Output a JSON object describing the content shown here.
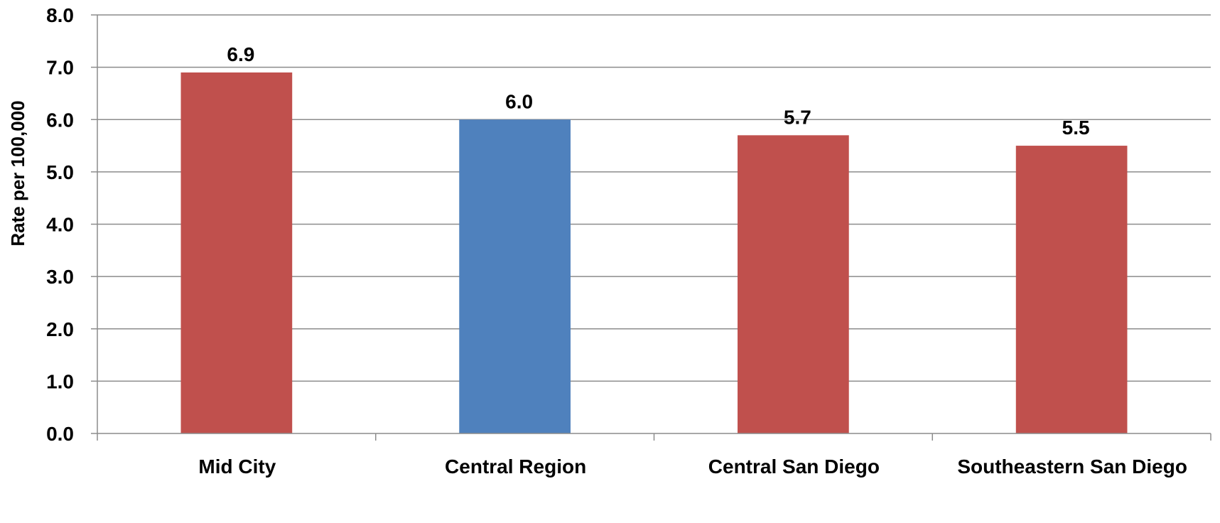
{
  "chart_data": {
    "type": "bar",
    "categories": [
      "Mid City",
      "Central Region",
      "Central San Diego",
      "Southeastern San Diego"
    ],
    "values": [
      6.9,
      6.0,
      5.7,
      5.5
    ],
    "data_labels": [
      "6.9",
      "6.0",
      "5.7",
      "5.5"
    ],
    "bar_colors": [
      "#c0504d",
      "#4f81bd",
      "#c0504d",
      "#c0504d"
    ],
    "title": "",
    "xlabel": "",
    "ylabel": "Rate per 100,000",
    "ylim": [
      0,
      8
    ],
    "yticks": [
      0,
      1,
      2,
      3,
      4,
      5,
      6,
      7,
      8
    ],
    "ytick_labels": [
      "0.0",
      "1.0",
      "2.0",
      "3.0",
      "4.0",
      "5.0",
      "6.0",
      "7.0",
      "8.0"
    ],
    "grid": true,
    "legend": "none"
  },
  "colors": {
    "grid": "#8c8c8c",
    "axis": "#8c8c8c",
    "text": "#000000"
  }
}
